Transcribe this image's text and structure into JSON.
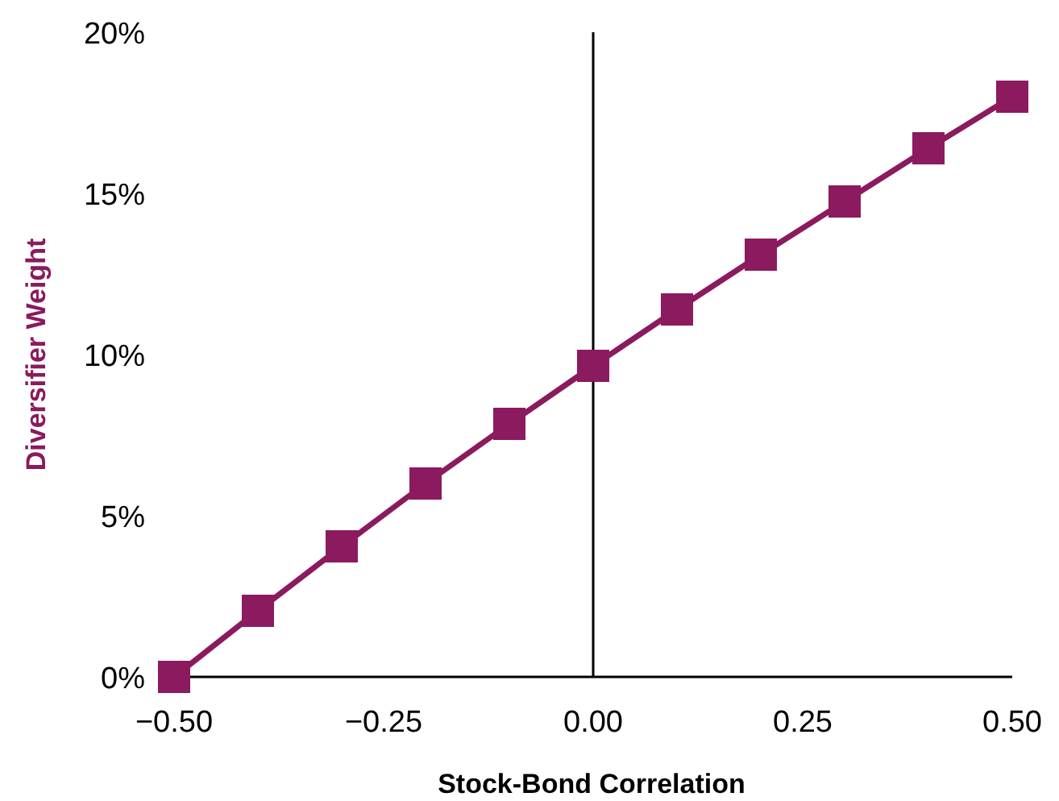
{
  "chart_data": {
    "type": "line",
    "xlabel": "Stock-Bond Correlation",
    "ylabel": "Diversifier Weight",
    "x": [
      -0.5,
      -0.4,
      -0.3,
      -0.2,
      -0.1,
      0,
      0.1,
      0.2,
      0.3,
      0.4,
      0.5
    ],
    "series": [
      {
        "color": "#8b1a5e",
        "values": [
          0,
          2.05,
          4.05,
          6.0,
          7.85,
          9.65,
          11.4,
          13.1,
          14.75,
          16.4,
          18.0
        ]
      }
    ],
    "xlim": [
      -0.5,
      0.5
    ],
    "xticks": [
      {
        "value": -0.5,
        "label": "−0.50"
      },
      {
        "value": -0.25,
        "label": "−0.25"
      },
      {
        "value": 0,
        "label": "0.00"
      },
      {
        "value": 0.25,
        "label": "0.25"
      },
      {
        "value": 0.5,
        "label": "0.50"
      }
    ],
    "ylim": [
      0,
      20
    ],
    "yticks": [
      {
        "value": 0,
        "label": "0%"
      },
      {
        "value": 5,
        "label": "5%"
      },
      {
        "value": 10,
        "label": "10%"
      },
      {
        "value": 15,
        "label": "15%"
      },
      {
        "value": 20,
        "label": "20%"
      }
    ],
    "ref_lines": [
      {
        "axis": "x",
        "value": 0,
        "color": "#000000"
      }
    ],
    "marker": "square",
    "line_style": "solid"
  }
}
